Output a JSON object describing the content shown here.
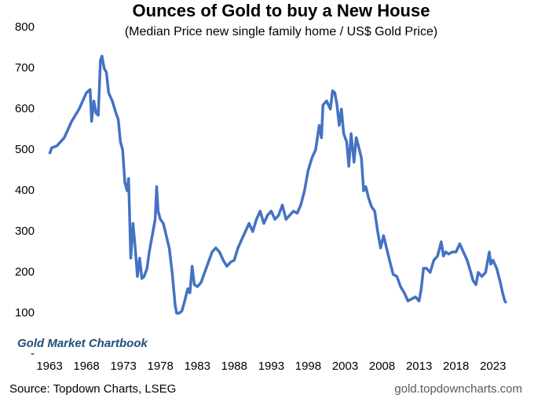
{
  "chart_data": {
    "type": "line",
    "title": "Ounces of Gold to buy a New House",
    "subtitle": "(Median Price new single family home / US$ Gold Price)",
    "annotation": "Gold Market Chartbook",
    "source": "Source: Topdown Charts, LSEG",
    "website": "gold.topdowncharts.com",
    "color": "#4472c4",
    "xlim": [
      1963,
      2026
    ],
    "xticks": [
      1963,
      1968,
      1973,
      1978,
      1983,
      1988,
      1993,
      1998,
      2003,
      2008,
      2013,
      2018,
      2023
    ],
    "ylim": [
      0,
      800
    ],
    "yticks": [
      {
        "value": 0,
        "label": "-"
      },
      100,
      200,
      300,
      400,
      500,
      600,
      700,
      800
    ],
    "x": [
      1963.0,
      1963.3,
      1964,
      1965,
      1966,
      1967,
      1968,
      1968.5,
      1968.7,
      1969,
      1969.3,
      1969.6,
      1969.9,
      1970.1,
      1970.4,
      1970.7,
      1971,
      1971.5,
      1972,
      1972.3,
      1972.6,
      1972.9,
      1973.2,
      1973.5,
      1973.7,
      1974,
      1974.3,
      1974.6,
      1974.9,
      1975.2,
      1975.5,
      1975.8,
      1976.2,
      1976.5,
      1976.9,
      1977.3,
      1977.5,
      1977.7,
      1978,
      1978.4,
      1978.8,
      1979.2,
      1979.6,
      1980,
      1980.2,
      1980.5,
      1980.9,
      1981.3,
      1981.7,
      1982,
      1982.3,
      1982.6,
      1983,
      1983.5,
      1984,
      1984.5,
      1985,
      1985.5,
      1986,
      1986.5,
      1987,
      1987.5,
      1988,
      1988.5,
      1989,
      1989.5,
      1990,
      1990.5,
      1991,
      1991.5,
      1992,
      1992.5,
      1993,
      1993.5,
      1994,
      1994.5,
      1995,
      1995.5,
      1996,
      1996.5,
      1997,
      1997.5,
      1998,
      1998.5,
      1999,
      1999.5,
      1999.8,
      2000,
      2000.5,
      2001,
      2001.3,
      2001.6,
      2001.9,
      2002.2,
      2002.5,
      2002.8,
      2003.2,
      2003.5,
      2003.8,
      2004.2,
      2004.5,
      2004.8,
      2005.2,
      2005.5,
      2005.8,
      2006.2,
      2006.6,
      2007,
      2007.4,
      2007.8,
      2008.2,
      2008.6,
      2009,
      2009.5,
      2010,
      2010.5,
      2011,
      2011.5,
      2012,
      2012.5,
      2013,
      2013.3,
      2013.6,
      2014,
      2014.5,
      2015,
      2015.5,
      2016,
      2016.3,
      2016.6,
      2017,
      2017.5,
      2018,
      2018.5,
      2019,
      2019.5,
      2020,
      2020.3,
      2020.7,
      2021,
      2021.5,
      2022,
      2022.5,
      2022.7,
      2023,
      2023.5,
      2024,
      2024.3,
      2024.6,
      2024.8
    ],
    "values": [
      490,
      505,
      510,
      530,
      570,
      600,
      640,
      648,
      570,
      620,
      590,
      585,
      720,
      730,
      700,
      690,
      640,
      620,
      590,
      575,
      520,
      500,
      420,
      400,
      430,
      235,
      320,
      260,
      190,
      235,
      185,
      190,
      210,
      250,
      290,
      330,
      410,
      350,
      330,
      320,
      290,
      260,
      200,
      120,
      100,
      100,
      105,
      130,
      160,
      150,
      215,
      170,
      165,
      175,
      200,
      225,
      250,
      260,
      250,
      230,
      215,
      225,
      230,
      260,
      280,
      300,
      320,
      300,
      330,
      350,
      320,
      340,
      350,
      330,
      340,
      365,
      330,
      340,
      350,
      345,
      365,
      400,
      450,
      480,
      500,
      560,
      530,
      610,
      620,
      600,
      645,
      640,
      610,
      560,
      600,
      540,
      520,
      460,
      540,
      470,
      530,
      510,
      480,
      400,
      410,
      380,
      360,
      350,
      300,
      260,
      290,
      260,
      230,
      195,
      190,
      165,
      150,
      130,
      135,
      140,
      130,
      160,
      210,
      210,
      200,
      230,
      240,
      275,
      240,
      250,
      245,
      250,
      250,
      270,
      250,
      230,
      200,
      180,
      170,
      200,
      190,
      200,
      250,
      220,
      230,
      210,
      175,
      150,
      130,
      125
    ]
  }
}
